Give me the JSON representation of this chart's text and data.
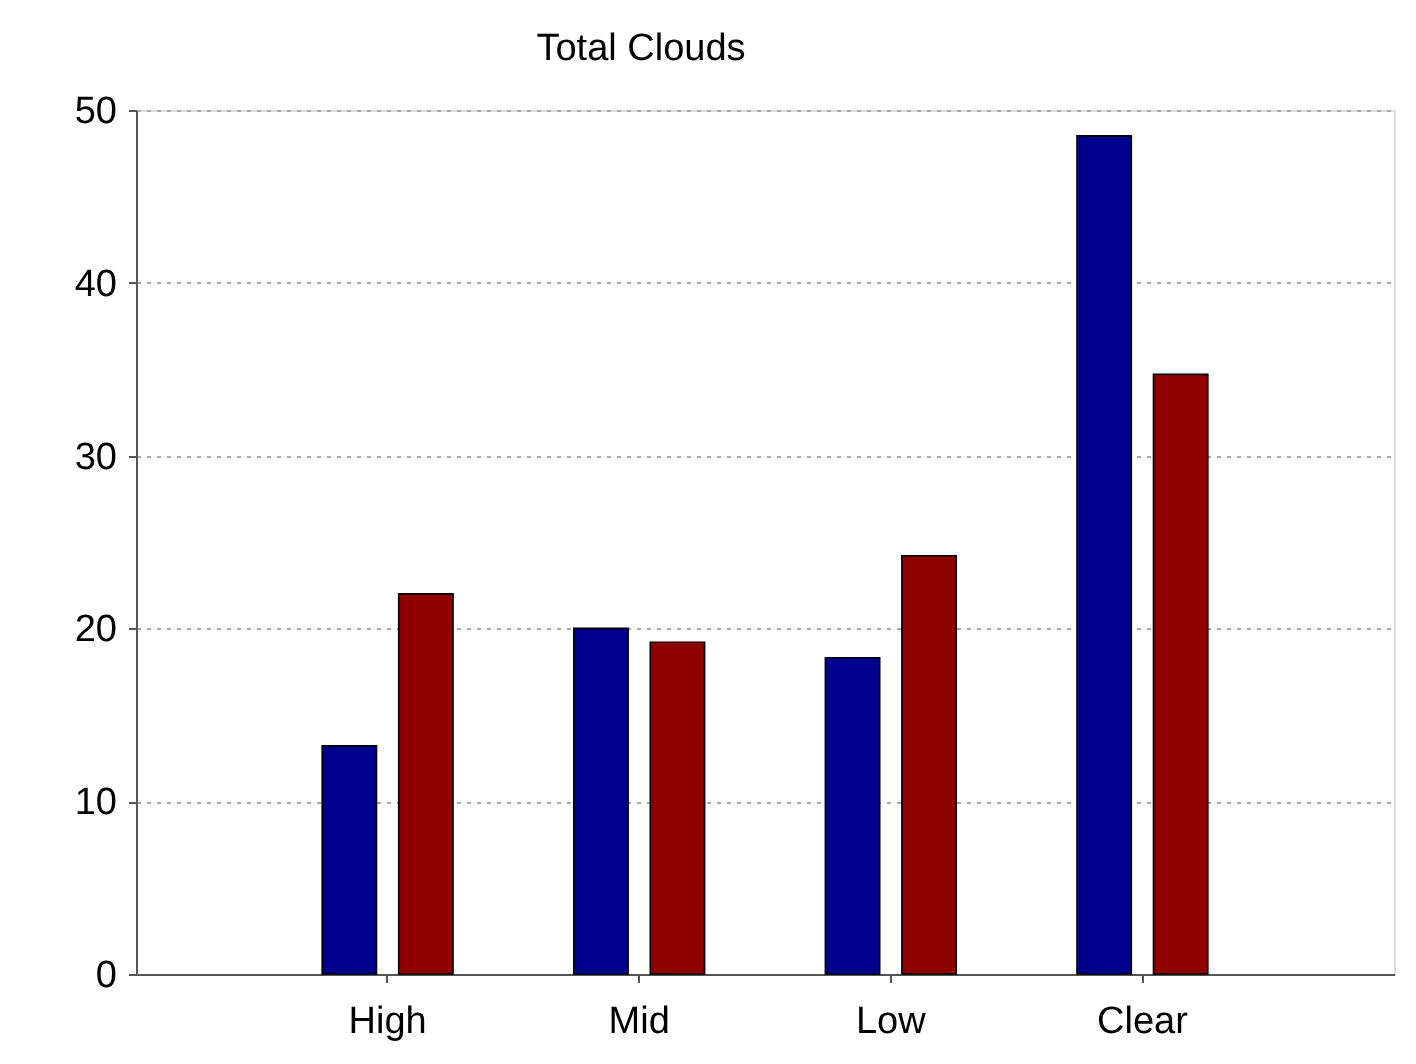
{
  "chart_data": {
    "type": "bar",
    "title": "Total Clouds",
    "categories": [
      "High",
      "Mid",
      "Low",
      "Clear"
    ],
    "series": [
      {
        "color": "#00008f",
        "values": [
          13.2,
          20.0,
          18.3,
          48.5
        ]
      },
      {
        "color": "#8f0000",
        "values": [
          22.0,
          19.2,
          24.2,
          34.7
        ]
      }
    ],
    "ylim": [
      0,
      50
    ],
    "yticks": [
      0,
      10,
      20,
      30,
      40,
      50
    ],
    "grid": "y"
  }
}
